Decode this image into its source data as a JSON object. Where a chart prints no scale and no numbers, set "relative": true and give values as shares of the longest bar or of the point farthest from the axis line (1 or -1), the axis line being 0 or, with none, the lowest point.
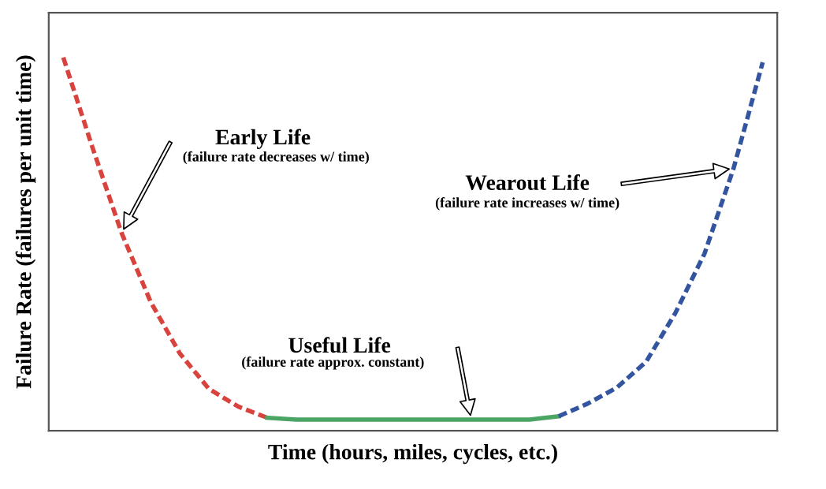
{
  "chart_data": {
    "type": "line",
    "relative": true,
    "xlabel": "Time (hours, miles, cycles, etc.)",
    "ylabel": "Failure Rate (failures per unit time)",
    "categories": [
      null,
      null,
      null,
      null,
      null,
      null,
      null,
      null,
      null,
      null,
      null,
      null,
      null,
      null,
      null,
      null,
      null,
      null,
      null,
      null,
      null,
      null,
      null,
      null,
      null
    ],
    "series": [
      {
        "color": "#d9433e",
        "line_style": "dashed",
        "values": [
          1.0,
          0.759,
          0.53,
          0.345,
          0.207,
          0.112,
          0.065,
          0.035,
          null,
          null,
          null,
          null,
          null,
          null,
          null,
          null,
          null,
          null,
          null,
          null,
          null,
          null,
          null,
          null,
          null
        ]
      },
      {
        "color": "#4aa564",
        "line_style": "solid",
        "values": [
          null,
          null,
          null,
          null,
          null,
          null,
          null,
          0.035,
          0.03,
          0.03,
          0.03,
          0.03,
          0.03,
          0.03,
          0.03,
          0.03,
          0.03,
          0.039,
          null,
          null,
          null,
          null,
          null,
          null,
          null
        ]
      },
      {
        "color": "#3355a0",
        "line_style": "dashed",
        "values": [
          null,
          null,
          null,
          null,
          null,
          null,
          null,
          null,
          null,
          null,
          null,
          null,
          null,
          null,
          null,
          null,
          null,
          0.039,
          0.073,
          0.116,
          0.185,
          0.315,
          0.474,
          0.703,
          0.987
        ]
      }
    ],
    "annotations": [
      "Early Life",
      "(failure rate decreases w/ time)",
      "Wearout Life",
      "(failure rate increases w/ time)",
      "Useful Life",
      "(failure rate approx. constant)"
    ],
    "legend": false,
    "marker": "none"
  }
}
